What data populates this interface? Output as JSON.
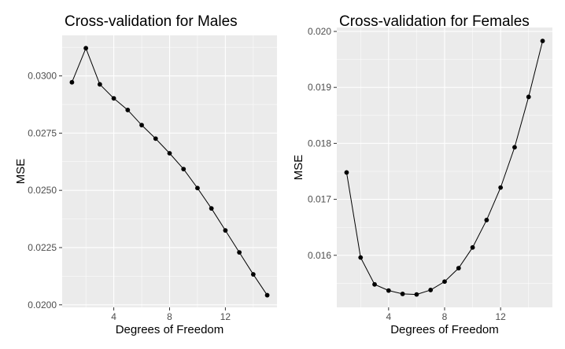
{
  "chart_data": [
    {
      "type": "line",
      "title": "Cross-validation for Males",
      "xlabel": "Degrees of Freedom",
      "ylabel": "MSE",
      "x": [
        1,
        2,
        3,
        4,
        5,
        6,
        7,
        8,
        9,
        10,
        11,
        12,
        13,
        14,
        15
      ],
      "series": [
        {
          "values": [
            0.02972,
            0.03121,
            0.02963,
            0.02902,
            0.02851,
            0.02785,
            0.02726,
            0.02662,
            0.02593,
            0.0251,
            0.02421,
            0.02325,
            0.02229,
            0.02133,
            0.02042
          ]
        }
      ],
      "xlim": [
        0.3,
        15.7
      ],
      "ylim": [
        0.01989,
        0.03177
      ],
      "xticks": [
        4,
        8,
        12
      ],
      "xtick_labels": [
        "4",
        "8",
        "12"
      ],
      "yticks": [
        0.02,
        0.0225,
        0.025,
        0.0275,
        0.03
      ],
      "ytick_labels": [
        "0.0200",
        "0.0225",
        "0.0250",
        "0.0275",
        "0.0300"
      ],
      "grid": true,
      "legend": "none",
      "line_color": "#000000",
      "panel_color": "#ebebeb"
    },
    {
      "type": "line",
      "title": "Cross-validation for Females",
      "xlabel": "Degrees of Freedom",
      "ylabel": "MSE",
      "x": [
        1,
        2,
        3,
        4,
        5,
        6,
        7,
        8,
        9,
        10,
        11,
        12,
        13,
        14,
        15
      ],
      "series": [
        {
          "values": [
            0.01748,
            0.01596,
            0.01548,
            0.01537,
            0.01531,
            0.0153,
            0.01538,
            0.01553,
            0.01577,
            0.01614,
            0.01663,
            0.01721,
            0.01793,
            0.01883,
            0.01983
          ]
        }
      ],
      "xlim": [
        0.3,
        15.7
      ],
      "ylim": [
        0.01507,
        0.02007
      ],
      "xticks": [
        4,
        8,
        12
      ],
      "xtick_labels": [
        "4",
        "8",
        "12"
      ],
      "yticks": [
        0.016,
        0.017,
        0.018,
        0.019,
        0.02
      ],
      "ytick_labels": [
        "0.016",
        "0.017",
        "0.018",
        "0.019",
        "0.020"
      ],
      "grid": true,
      "legend": "none",
      "line_color": "#000000",
      "panel_color": "#ebebeb"
    }
  ]
}
